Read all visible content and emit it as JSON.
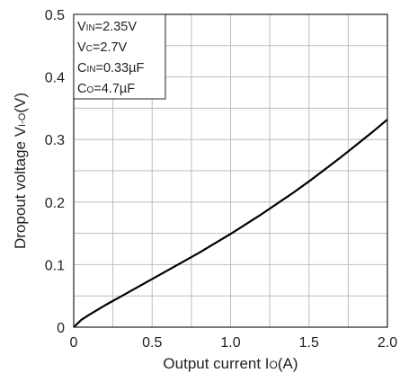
{
  "chart_data": {
    "type": "line",
    "xlabel": {
      "main": "Output current I",
      "sub": "O",
      "tail": "(A)"
    },
    "ylabel": {
      "main": "Dropout voltage V",
      "sub": "I-O",
      "tail": "(V)"
    },
    "xlim": [
      0,
      2.0
    ],
    "ylim": [
      0,
      0.5
    ],
    "x_ticks": [
      0,
      0.5,
      1.0,
      1.5,
      2.0
    ],
    "x_tick_labels": [
      "0",
      "0.5",
      "1.0",
      "1.5",
      "2.0"
    ],
    "y_ticks": [
      0,
      0.1,
      0.2,
      0.3,
      0.4,
      0.5
    ],
    "y_tick_labels": [
      "0",
      "0.1",
      "0.2",
      "0.3",
      "0.4",
      "0.5"
    ],
    "grid": true,
    "legend_box": "top-left",
    "conditions": [
      {
        "main": "V",
        "sub": "IN",
        "tail": "=2.35V"
      },
      {
        "main": "V",
        "sub": "C",
        "tail": "=2.7V"
      },
      {
        "main": "C",
        "sub": "IN",
        "tail": "=0.33µF"
      },
      {
        "main": "C",
        "sub": "O",
        "tail": "=4.7µF"
      }
    ],
    "series": [
      {
        "x": [
          0,
          0.05,
          0.1,
          0.2,
          0.3,
          0.4,
          0.5,
          0.6,
          0.7,
          0.8,
          0.9,
          1.0,
          1.1,
          1.2,
          1.3,
          1.4,
          1.5,
          1.6,
          1.7,
          1.8,
          1.9,
          2.0
        ],
        "y": [
          0,
          0.012,
          0.02,
          0.035,
          0.049,
          0.063,
          0.077,
          0.091,
          0.105,
          0.119,
          0.134,
          0.149,
          0.165,
          0.181,
          0.198,
          0.215,
          0.233,
          0.252,
          0.271,
          0.291,
          0.311,
          0.332
        ]
      }
    ],
    "colors": {
      "line": "#000000",
      "grid": "#bcbec0",
      "frame": "#231f20"
    }
  }
}
